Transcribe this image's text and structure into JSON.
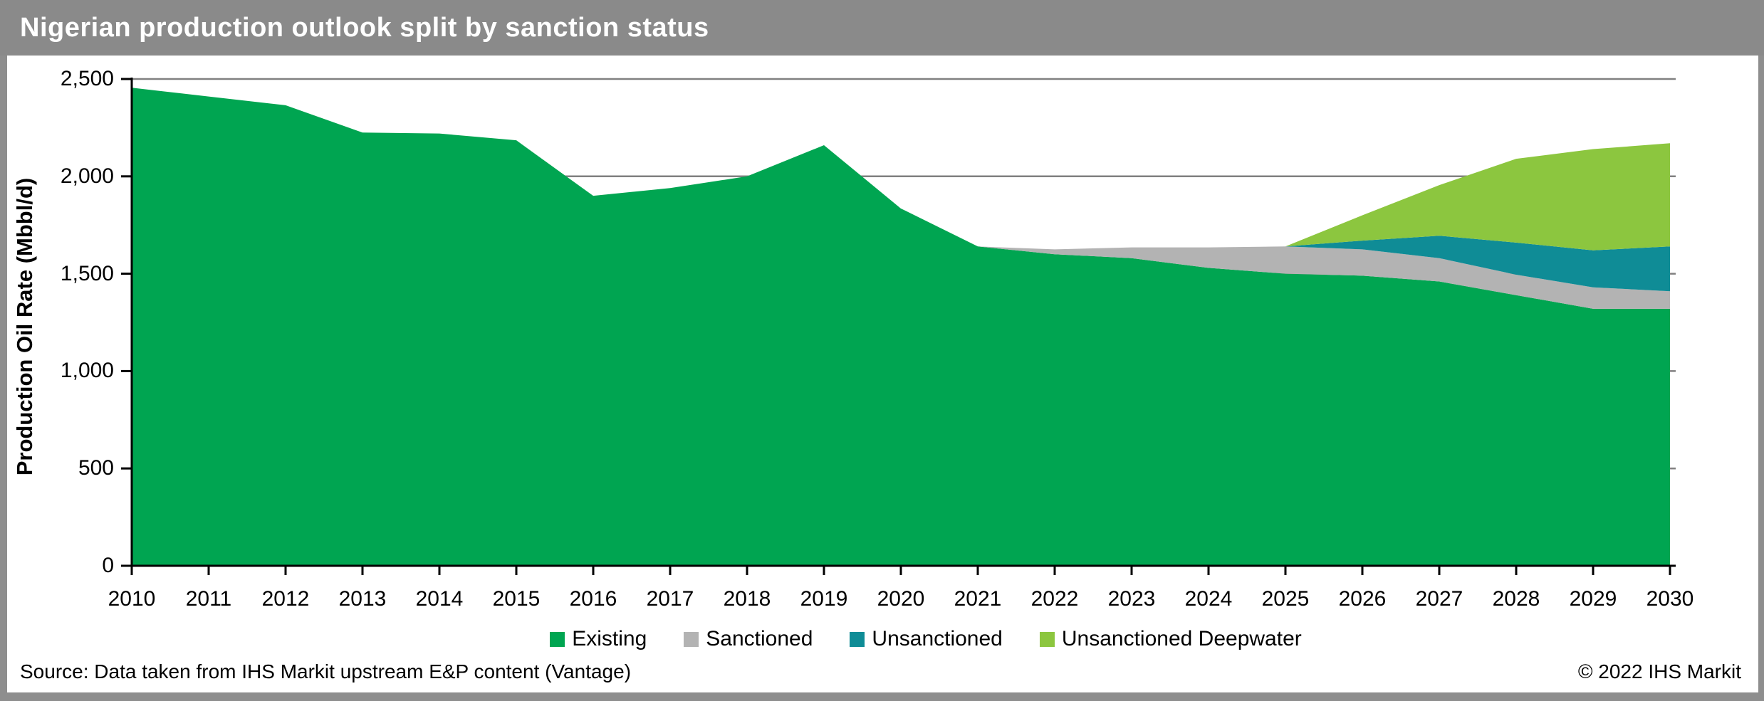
{
  "header": {
    "title": "Nigerian production outlook split by sanction status",
    "bg_color": "#8a8a8a",
    "text_color": "#ffffff"
  },
  "footer": {
    "source": "Source: Data taken from IHS Markit upstream E&P content (Vantage)",
    "copyright": "© 2022 IHS Markit"
  },
  "colors": {
    "frame_border": "#8e8e8e",
    "gridline": "#808080",
    "axis": "#000000",
    "plot_background": "#ffffff"
  },
  "chart_data": {
    "type": "area",
    "stacked": true,
    "title": "Nigerian production outlook split by sanction status",
    "xlabel": "",
    "ylabel": "Production Oil Rate (Mbbl/d)",
    "ylim": [
      0,
      2500
    ],
    "ytick_step": 500,
    "ytick_labels": [
      "0",
      "500",
      "1,000",
      "1,500",
      "2,000",
      "2,500"
    ],
    "grid": "horizontal",
    "legend_position": "bottom",
    "x": [
      2010,
      2011,
      2012,
      2013,
      2014,
      2015,
      2016,
      2017,
      2018,
      2019,
      2020,
      2021,
      2022,
      2023,
      2024,
      2025,
      2026,
      2027,
      2028,
      2029,
      2030
    ],
    "series": [
      {
        "name": "Existing",
        "color": "#00a551",
        "values": [
          2455,
          2410,
          2365,
          2225,
          2220,
          2185,
          1900,
          1940,
          2000,
          2160,
          1835,
          1640,
          1600,
          1580,
          1530,
          1500,
          1490,
          1460,
          1390,
          1320,
          1320
        ]
      },
      {
        "name": "Sanctioned",
        "color": "#b3b3b3",
        "values": [
          0,
          0,
          0,
          0,
          0,
          0,
          0,
          0,
          0,
          0,
          0,
          0,
          25,
          55,
          105,
          140,
          135,
          120,
          105,
          110,
          90
        ]
      },
      {
        "name": "Unsanctioned",
        "color": "#0f8c96",
        "values": [
          0,
          0,
          0,
          0,
          0,
          0,
          0,
          0,
          0,
          0,
          0,
          0,
          0,
          0,
          0,
          0,
          45,
          115,
          165,
          190,
          230
        ]
      },
      {
        "name": "Unsanctioned Deepwater",
        "color": "#8cc63f",
        "values": [
          0,
          0,
          0,
          0,
          0,
          0,
          0,
          0,
          0,
          0,
          0,
          0,
          0,
          0,
          0,
          0,
          130,
          260,
          430,
          520,
          530
        ]
      }
    ]
  }
}
